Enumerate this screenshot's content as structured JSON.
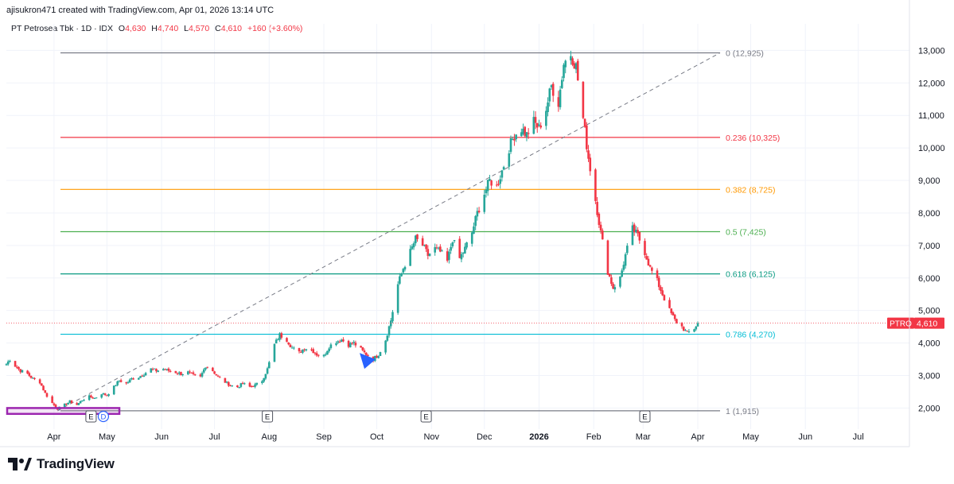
{
  "header": {
    "attribution": "ajisukron471 created with TradingView.com, Apr 01, 2026 13:14 UTC",
    "symbol_name": "PT Petrosea Tbk · 1D · IDX",
    "o_label": "O",
    "o_value": "4,630",
    "h_label": "H",
    "h_value": "4,740",
    "l_label": "L",
    "l_value": "4,570",
    "c_label": "C",
    "c_value": "4,610",
    "change": "+160 (+3.60%)"
  },
  "footer": {
    "brand": "TradingView"
  },
  "price_badge": {
    "ticker": "PTRO",
    "price": "4,610",
    "value": 4610
  },
  "colors": {
    "up": "#26a69a",
    "down": "#f23645",
    "grid": "#f0f3fa",
    "fib_0": "#787b86",
    "fib_236": "#f23645",
    "fib_382": "#ff9800",
    "fib_5": "#4caf50",
    "fib_618": "#089981",
    "fib_786": "#00bcd4",
    "fib_1": "#787b86",
    "marker": "#9c27b0",
    "arrow": "#2962ff",
    "earnings_d": "#2962ff"
  },
  "chart_data": {
    "type": "candlestick",
    "title": "PT Petrosea Tbk · 1D · IDX",
    "y_axis_ticks": [
      2000,
      3000,
      4000,
      5000,
      6000,
      7000,
      8000,
      9000,
      10000,
      11000,
      12000,
      13000
    ],
    "y_axis_tick_labels": [
      "2,000",
      "3,000",
      "4,000",
      "5,000",
      "6,000",
      "7,000",
      "8,000",
      "9,000",
      "10,000",
      "11,000",
      "12,000",
      "13,000"
    ],
    "ylim": [
      1350,
      13450
    ],
    "x_axis_labels": [
      "Apr",
      "May",
      "Jun",
      "Jul",
      "Aug",
      "Sep",
      "Oct",
      "Nov",
      "Dec",
      "2026",
      "Feb",
      "Mar",
      "Apr",
      "May",
      "Jun",
      "Jul"
    ],
    "x_axis_dates": [
      "2025-04-01",
      "2025-05-01",
      "2025-06-01",
      "2025-07-01",
      "2025-08-01",
      "2025-09-01",
      "2025-10-01",
      "2025-11-01",
      "2025-12-01",
      "2026-01-01",
      "2026-02-01",
      "2026-03-01",
      "2026-04-01",
      "2026-05-01",
      "2026-06-01",
      "2026-07-01"
    ],
    "xlim": [
      "2025-03-05",
      "2026-07-30"
    ],
    "price_path": [
      [
        "2025-03-05",
        3350
      ],
      [
        "2025-03-07",
        3500
      ],
      [
        "2025-03-10",
        3300
      ],
      [
        "2025-03-13",
        3150
      ],
      [
        "2025-03-17",
        3050
      ],
      [
        "2025-03-20",
        2900
      ],
      [
        "2025-03-24",
        2800
      ],
      [
        "2025-03-27",
        2450
      ],
      [
        "2025-03-31",
        2150
      ],
      [
        "2025-04-03",
        1980
      ],
      [
        "2025-04-07",
        2100
      ],
      [
        "2025-04-10",
        2200
      ],
      [
        "2025-04-14",
        2100
      ],
      [
        "2025-04-17",
        2250
      ],
      [
        "2025-04-21",
        2350
      ],
      [
        "2025-04-24",
        2300
      ],
      [
        "2025-04-28",
        2450
      ],
      [
        "2025-05-01",
        2400
      ],
      [
        "2025-05-05",
        2650
      ],
      [
        "2025-05-08",
        2850
      ],
      [
        "2025-05-12",
        2750
      ],
      [
        "2025-05-15",
        2900
      ],
      [
        "2025-05-19",
        2950
      ],
      [
        "2025-05-22",
        3050
      ],
      [
        "2025-05-26",
        3200
      ],
      [
        "2025-05-29",
        3150
      ],
      [
        "2025-06-02",
        3200
      ],
      [
        "2025-06-05",
        3150
      ],
      [
        "2025-06-09",
        3100
      ],
      [
        "2025-06-12",
        3050
      ],
      [
        "2025-06-16",
        3100
      ],
      [
        "2025-06-19",
        3000
      ],
      [
        "2025-06-23",
        2950
      ],
      [
        "2025-06-26",
        3300
      ],
      [
        "2025-06-30",
        3150
      ],
      [
        "2025-07-03",
        2950
      ],
      [
        "2025-07-07",
        2800
      ],
      [
        "2025-07-10",
        2700
      ],
      [
        "2025-07-14",
        2650
      ],
      [
        "2025-07-17",
        2750
      ],
      [
        "2025-07-21",
        2650
      ],
      [
        "2025-07-24",
        2700
      ],
      [
        "2025-07-28",
        2850
      ],
      [
        "2025-07-31",
        3200
      ],
      [
        "2025-08-04",
        3950
      ],
      [
        "2025-08-07",
        4250
      ],
      [
        "2025-08-11",
        4100
      ],
      [
        "2025-08-14",
        3850
      ],
      [
        "2025-08-18",
        3700
      ],
      [
        "2025-08-21",
        3850
      ],
      [
        "2025-08-25",
        3800
      ],
      [
        "2025-08-28",
        3650
      ],
      [
        "2025-09-01",
        3600
      ],
      [
        "2025-09-04",
        3900
      ],
      [
        "2025-09-08",
        4050
      ],
      [
        "2025-09-11",
        4100
      ],
      [
        "2025-09-15",
        3950
      ],
      [
        "2025-09-18",
        4000
      ],
      [
        "2025-09-22",
        3800
      ],
      [
        "2025-09-25",
        3650
      ],
      [
        "2025-09-29",
        3500
      ],
      [
        "2025-10-02",
        3650
      ],
      [
        "2025-10-06",
        4100
      ],
      [
        "2025-10-09",
        4700
      ],
      [
        "2025-10-13",
        5800
      ],
      [
        "2025-10-16",
        6300
      ],
      [
        "2025-10-20",
        6800
      ],
      [
        "2025-10-23",
        7200
      ],
      [
        "2025-10-27",
        7000
      ],
      [
        "2025-10-30",
        6700
      ],
      [
        "2025-11-03",
        6900
      ],
      [
        "2025-11-06",
        6800
      ],
      [
        "2025-11-10",
        6500
      ],
      [
        "2025-11-13",
        7200
      ],
      [
        "2025-11-17",
        6600
      ],
      [
        "2025-11-20",
        6900
      ],
      [
        "2025-11-24",
        7400
      ],
      [
        "2025-11-27",
        8000
      ],
      [
        "2025-12-01",
        8600
      ],
      [
        "2025-12-04",
        9000
      ],
      [
        "2025-12-08",
        8800
      ],
      [
        "2025-12-11",
        9300
      ],
      [
        "2025-12-15",
        10000
      ],
      [
        "2025-12-18",
        10400
      ],
      [
        "2025-12-22",
        10600
      ],
      [
        "2025-12-25",
        10400
      ],
      [
        "2025-12-29",
        10800
      ],
      [
        "2026-01-01",
        10600
      ],
      [
        "2026-01-05",
        11200
      ],
      [
        "2026-01-08",
        11900
      ],
      [
        "2026-01-12",
        11400
      ],
      [
        "2026-01-15",
        12600
      ],
      [
        "2026-01-19",
        12900
      ],
      [
        "2026-01-22",
        12500
      ],
      [
        "2026-01-26",
        10900
      ],
      [
        "2026-01-29",
        9700
      ],
      [
        "2026-02-02",
        8400
      ],
      [
        "2026-02-05",
        7400
      ],
      [
        "2026-02-09",
        6200
      ],
      [
        "2026-02-12",
        5700
      ],
      [
        "2026-02-16",
        6000
      ],
      [
        "2026-02-19",
        6700
      ],
      [
        "2026-02-23",
        7500
      ],
      [
        "2026-02-26",
        7300
      ],
      [
        "2026-03-02",
        6800
      ],
      [
        "2026-03-05",
        6300
      ],
      [
        "2026-03-09",
        5900
      ],
      [
        "2026-03-12",
        5500
      ],
      [
        "2026-03-16",
        5000
      ],
      [
        "2026-03-19",
        4700
      ],
      [
        "2026-03-23",
        4500
      ],
      [
        "2026-03-26",
        4300
      ],
      [
        "2026-03-30",
        4450
      ],
      [
        "2026-04-01",
        4610
      ]
    ],
    "fib_retracement": [
      {
        "ratio": "0",
        "price": 12925,
        "label": "0 (12,925)"
      },
      {
        "ratio": "0.236",
        "price": 10325,
        "label": "0.236 (10,325)"
      },
      {
        "ratio": "0.382",
        "price": 8725,
        "label": "0.382 (8,725)"
      },
      {
        "ratio": "0.5",
        "price": 7425,
        "label": "0.5 (7,425)"
      },
      {
        "ratio": "0.618",
        "price": 6125,
        "label": "0.618 (6,125)"
      },
      {
        "ratio": "0.786",
        "price": 4270,
        "label": "0.786 (4,270)"
      },
      {
        "ratio": "1",
        "price": 1915,
        "label": "1 (1,915)"
      }
    ],
    "fib_trend_line": {
      "from": [
        "2025-04-03",
        1915
      ],
      "to": [
        "2026-02-16",
        12925
      ]
    },
    "events": [
      {
        "date": "2025-04-22",
        "label": "E"
      },
      {
        "date": "2025-04-29",
        "label": "D"
      },
      {
        "date": "2025-07-31",
        "label": "E"
      },
      {
        "date": "2025-10-29",
        "label": "E"
      },
      {
        "date": "2026-03-02",
        "label": "E"
      }
    ],
    "grid": true,
    "current_price": 4610
  }
}
